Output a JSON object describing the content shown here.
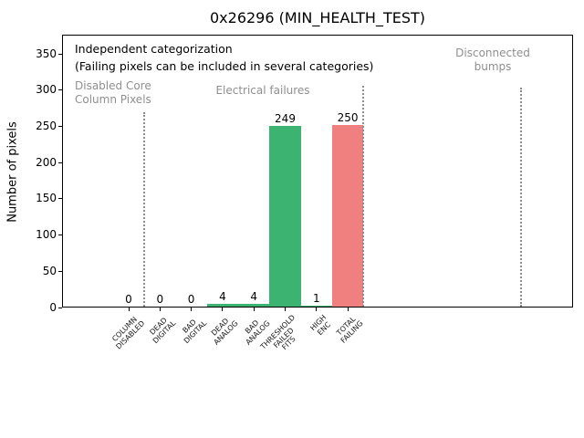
{
  "chart_data": {
    "type": "bar",
    "title": "0x26296 (MIN_HEALTH_TEST)",
    "ylabel": "Number of pixels",
    "xlabel": "",
    "ylim": [
      0,
      376
    ],
    "yticks": [
      0,
      50,
      100,
      150,
      200,
      250,
      300,
      350
    ],
    "grid": false,
    "legend": null,
    "categories": [
      "COLUMN\nDISABLED",
      "DEAD\nDIGITAL",
      "BAD\nDIGITAL",
      "DEAD\nANALOG",
      "BAD\nANALOG",
      "THRESHOLD\nFAILED\nFITS",
      "HIGH\nENC",
      "TOTAL\nFAILING"
    ],
    "values": [
      0,
      0,
      0,
      4,
      4,
      249,
      1,
      250
    ],
    "value_labels": [
      "0",
      "0",
      "0",
      "4",
      "4",
      "249",
      "1",
      "250"
    ],
    "bar_colors": [
      "#3cb371",
      "#3cb371",
      "#3cb371",
      "#3cb371",
      "#3cb371",
      "#3cb371",
      "#3cb371",
      "#f08080"
    ],
    "separators_x": [
      0.5,
      7.5,
      12.55
    ],
    "annotations": {
      "note_line1": "Independent categorization",
      "note_line2": "(Failing pixels can be included in several categories)",
      "section_disabled": "Disabled Core\nColumn Pixels",
      "section_electrical": "Electrical failures",
      "section_disconnected": "Disconnected\nbumps"
    },
    "colors": {
      "bar_green": "#3cb371",
      "bar_red": "#f08080",
      "gray_text": "#8f8f8f",
      "separator_line": "#8c8c8c"
    }
  }
}
